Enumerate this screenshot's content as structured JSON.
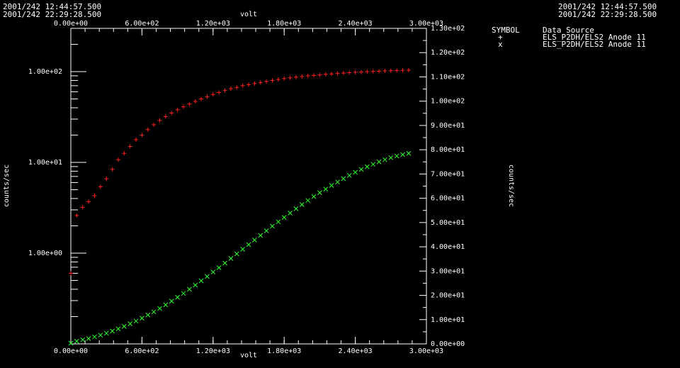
{
  "header": {
    "left": [
      "2001/242 12:44:57.500",
      "2001/242 22:29:28.500"
    ],
    "right": [
      "2001/242 12:44:57.500",
      "2001/242 22:29:28.500"
    ]
  },
  "legend": {
    "header_symbol": "SYMBOL",
    "header_source": "Data Source",
    "entries": [
      {
        "symbol": "+",
        "source": "ELS_P2DH/ELS2 Anode 11"
      },
      {
        "symbol": "x",
        "source": "ELS_P2DH/ELS2 Anode 11"
      }
    ]
  },
  "colors": {
    "series1": "#ff2020",
    "series2": "#30ff30",
    "axes": "#ffffff",
    "background": "#000000"
  },
  "chart_data": {
    "type": "scatter",
    "xlabel": "volt",
    "ylabel_left": "counts/sec",
    "ylabel_right": "counts/sec",
    "xlim": [
      0,
      3000
    ],
    "x_ticks": [
      "0.00e+00",
      "6.00e+02",
      "1.20e+03",
      "1.80e+03",
      "2.40e+03",
      "3.00e+03"
    ],
    "y_left_scale": "log",
    "y_left_lim": [
      0.1,
      300
    ],
    "y_left_ticks": [
      1,
      10,
      100
    ],
    "y_left_tick_labels": [
      "1.00e+00",
      "1.00e+01",
      "1.00e+02"
    ],
    "y_right_lim": [
      0,
      130
    ],
    "y_right_ticks": [
      "0.00e+00",
      "1.00e+01",
      "2.00e+01",
      "3.00e+01",
      "4.00e+01",
      "5.00e+01",
      "6.00e+01",
      "7.00e+01",
      "8.00e+01",
      "9.00e+01",
      "1.00e+02",
      "1.10e+02",
      "1.20e+02",
      "1.30e+02"
    ],
    "series": [
      {
        "name": "ELS_P2DH/ELS2 Anode 11 (+, left log axis)",
        "symbol": "+",
        "axis": "left",
        "x": [
          0,
          50,
          100,
          150,
          200,
          250,
          300,
          350,
          400,
          450,
          500,
          550,
          600,
          650,
          700,
          750,
          800,
          850,
          900,
          950,
          1000,
          1050,
          1100,
          1150,
          1200,
          1250,
          1300,
          1350,
          1400,
          1450,
          1500,
          1550,
          1600,
          1650,
          1700,
          1750,
          1800,
          1850,
          1900,
          1950,
          2000,
          2050,
          2100,
          2150,
          2200,
          2250,
          2300,
          2350,
          2400,
          2450,
          2500,
          2550,
          2600,
          2650,
          2700,
          2750,
          2800,
          2850
        ],
        "y": [
          0.6,
          2.6,
          3.2,
          3.7,
          4.3,
          5.4,
          6.6,
          8.4,
          10.7,
          12.6,
          15,
          17.8,
          20,
          23,
          26,
          29,
          32,
          35,
          38,
          41,
          44,
          47,
          50,
          53,
          56,
          59,
          62,
          65,
          67,
          70,
          72,
          74,
          76,
          78,
          80,
          82,
          84,
          85.5,
          87,
          88.5,
          90,
          91,
          92,
          93.5,
          94.5,
          95.5,
          96.5,
          97.5,
          98.5,
          99,
          100,
          100.5,
          101,
          102,
          102.5,
          103,
          103.5,
          104
        ]
      },
      {
        "name": "ELS_P2DH/ELS2 Anode 11 (x, right linear axis)",
        "symbol": "x",
        "axis": "right",
        "x": [
          0,
          50,
          100,
          150,
          200,
          250,
          300,
          350,
          400,
          450,
          500,
          550,
          600,
          650,
          700,
          750,
          800,
          850,
          900,
          950,
          1000,
          1050,
          1100,
          1150,
          1200,
          1250,
          1300,
          1350,
          1400,
          1450,
          1500,
          1550,
          1600,
          1650,
          1700,
          1750,
          1800,
          1850,
          1900,
          1950,
          2000,
          2050,
          2100,
          2150,
          2200,
          2250,
          2300,
          2350,
          2400,
          2450,
          2500,
          2550,
          2600,
          2650,
          2700,
          2750,
          2800,
          2850
        ],
        "y": [
          0.3,
          1.1,
          1.7,
          2.2,
          2.9,
          3.6,
          4.4,
          5.3,
          6.2,
          7.2,
          8.3,
          9.4,
          10.6,
          11.9,
          13.2,
          14.6,
          16.1,
          17.6,
          19.2,
          20.8,
          22.5,
          24.2,
          26,
          27.8,
          29.6,
          31.4,
          33.3,
          35.2,
          37.1,
          39,
          40.9,
          42.8,
          44.7,
          46.6,
          48.5,
          50.3,
          52.1,
          53.9,
          55.7,
          57.4,
          59.1,
          60.7,
          62.3,
          63.8,
          65.3,
          66.7,
          68.1,
          69.4,
          70.7,
          71.9,
          73,
          74,
          75,
          75.9,
          76.7,
          77.4,
          78,
          78.5
        ]
      }
    ]
  }
}
